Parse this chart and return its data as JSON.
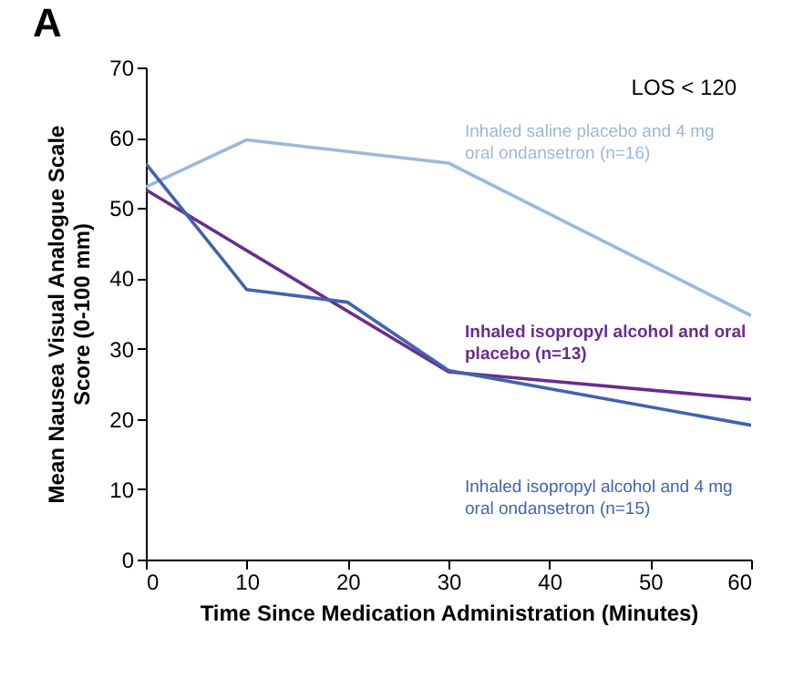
{
  "chart_data": {
    "type": "line",
    "title": "A",
    "annotations": [
      "LOS < 120"
    ],
    "xlabel": "Time Since Medication Administration (Minutes)",
    "ylabel": "Mean Nausea Visual Analogue Scale Score (0-100 mm)",
    "xlim": [
      0,
      60
    ],
    "xticks": [
      0,
      10,
      20,
      30,
      40,
      50,
      60
    ],
    "ylim": [
      0,
      70
    ],
    "yticks": [
      0,
      10,
      20,
      30,
      40,
      50,
      60,
      70
    ],
    "grid": false,
    "legend": false,
    "series": [
      {
        "name": "Inhaled saline placebo and 4 mg oral ondansetron (n=16)",
        "color": "#9bb8dc",
        "x": [
          0,
          10,
          30,
          60
        ],
        "values": [
          53,
          59.7,
          56.4,
          34.7
        ]
      },
      {
        "name": "Inhaled isopropyl alcohol and oral placebo (n=13)",
        "color": "#6a2c8e",
        "x": [
          0,
          30,
          60
        ],
        "values": [
          52.6,
          26.7,
          22.8
        ]
      },
      {
        "name": "Inhaled isopropyl alcohol and 4 mg oral ondansetron (n=15)",
        "color": "#4163ae",
        "x": [
          0,
          10,
          20,
          30,
          60
        ],
        "values": [
          56.3,
          38.4,
          36.6,
          26.9,
          19.1
        ]
      }
    ]
  }
}
